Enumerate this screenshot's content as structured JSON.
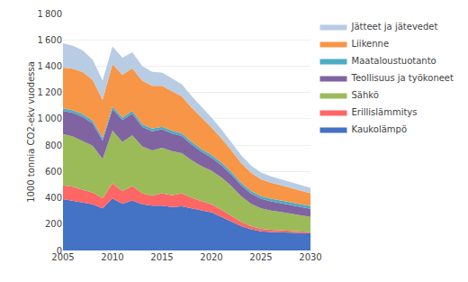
{
  "chart_data": {
    "type": "area",
    "stacked": true,
    "ylabel": "1000 tonnia CO2-ekv vuodessa",
    "x": [
      2005,
      2006,
      2007,
      2008,
      2009,
      2010,
      2011,
      2012,
      2013,
      2014,
      2015,
      2016,
      2017,
      2018,
      2019,
      2020,
      2021,
      2022,
      2023,
      2024,
      2025,
      2026,
      2027,
      2028,
      2029,
      2030
    ],
    "xlim": [
      2005,
      2030
    ],
    "xticks": [
      2005,
      2010,
      2015,
      2020,
      2025,
      2030
    ],
    "ylim": [
      0,
      1800
    ],
    "yticks": [
      0,
      200,
      400,
      600,
      800,
      {
        "value": 1000,
        "label": "1 000"
      },
      {
        "value": 1200,
        "label": "1 200"
      },
      {
        "value": 1400,
        "label": "1 400"
      },
      {
        "value": 1600,
        "label": "1 600"
      },
      {
        "value": 1800,
        "label": "1 800"
      }
    ],
    "grid": true,
    "legend": "right",
    "series": [
      {
        "name": "Kaukolämpö",
        "color": "#4472C4",
        "values": [
          390,
          375,
          360,
          350,
          320,
          395,
          355,
          380,
          350,
          340,
          340,
          330,
          335,
          320,
          310,
          290,
          255,
          220,
          185,
          160,
          145,
          140,
          138,
          135,
          133,
          130
        ]
      },
      {
        "name": "Erillislämmitys",
        "color": "#FF6666",
        "values": [
          105,
          110,
          100,
          90,
          75,
          115,
          95,
          110,
          85,
          75,
          95,
          90,
          100,
          80,
          65,
          60,
          55,
          45,
          32,
          25,
          20,
          18,
          16,
          14,
          12,
          10
        ]
      },
      {
        "name": "Sähkö",
        "color": "#9BBB59",
        "values": [
          390,
          380,
          370,
          355,
          300,
          400,
          375,
          385,
          355,
          345,
          345,
          335,
          305,
          285,
          265,
          255,
          245,
          225,
          195,
          170,
          155,
          145,
          138,
          130,
          122,
          115
        ]
      },
      {
        "name": "Teollisuus ja työkoneet",
        "color": "#8064A2",
        "values": [
          175,
          180,
          185,
          170,
          140,
          165,
          165,
          165,
          150,
          145,
          140,
          135,
          130,
          120,
          110,
          100,
          92,
          87,
          82,
          77,
          73,
          70,
          68,
          66,
          64,
          62
        ]
      },
      {
        "name": "Maataloustuotanto",
        "color": "#4BACC6",
        "values": [
          20,
          20,
          20,
          20,
          20,
          20,
          20,
          20,
          20,
          20,
          20,
          20,
          20,
          20,
          20,
          20,
          20,
          20,
          20,
          20,
          20,
          20,
          20,
          20,
          20,
          20
        ]
      },
      {
        "name": "Liikenne",
        "color": "#F79646",
        "values": [
          310,
          315,
          320,
          310,
          290,
          320,
          325,
          325,
          330,
          325,
          310,
          300,
          280,
          260,
          240,
          210,
          185,
          165,
          150,
          138,
          128,
          122,
          116,
          110,
          104,
          98
        ]
      },
      {
        "name": "Jätteet ja jätevedet",
        "color": "#B8CCE4",
        "values": [
          185,
          175,
          165,
          155,
          145,
          135,
          130,
          120,
          112,
          107,
          102,
          97,
          92,
          87,
          83,
          74,
          68,
          63,
          59,
          55,
          51,
          48,
          46,
          44,
          42,
          40
        ]
      }
    ]
  }
}
